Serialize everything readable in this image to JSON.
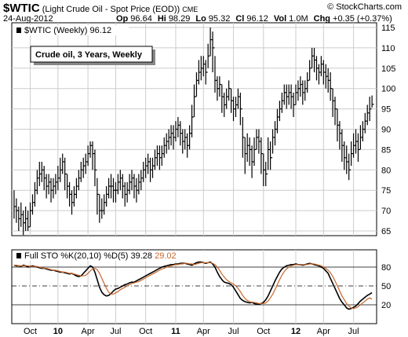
{
  "header": {
    "symbol": "$WTIC",
    "description": "(Light Crude Oil - Spot Price (EOD))",
    "exchange": "CME",
    "date": "24-Aug-2012",
    "stats": [
      [
        "Op",
        "96.64"
      ],
      [
        "Hi",
        "98.29"
      ],
      [
        "Lo",
        "95.32"
      ],
      [
        "Cl",
        "96.12"
      ],
      [
        "Vol",
        "1.0M"
      ],
      [
        "Chg",
        "+0.35 (+0.37%)"
      ]
    ],
    "source": "© StockCharts.com"
  },
  "chart_data": [
    {
      "type": "ohlc",
      "title": "Crude oil, 3 Years, Weekly",
      "legend": "$WTIC (Weekly)",
      "color": "#000000",
      "grid": true,
      "xlim": [
        -1,
        157
      ],
      "ylim": [
        63.84,
        116.16
      ],
      "yticks": [
        65,
        70,
        75,
        80,
        85,
        90,
        95,
        100,
        105,
        110,
        115
      ],
      "xticks": [
        {
          "value": 7,
          "label": "Oct"
        },
        {
          "value": 19,
          "label": "10"
        },
        {
          "value": 32,
          "label": "Apr"
        },
        {
          "value": 44,
          "label": "Jul"
        },
        {
          "value": 57,
          "label": "Oct"
        },
        {
          "value": 70,
          "label": "11"
        },
        {
          "value": 82,
          "label": "Apr"
        },
        {
          "value": 95,
          "label": "Jul"
        },
        {
          "value": 108,
          "label": "Oct"
        },
        {
          "value": 122,
          "label": "12"
        },
        {
          "value": 134,
          "label": "Apr"
        },
        {
          "value": 147,
          "label": "Jul"
        }
      ],
      "high": [
        75,
        73,
        71,
        72,
        70,
        71,
        70,
        72,
        74,
        77,
        80,
        82,
        82,
        81,
        79,
        79,
        78,
        78,
        79,
        81,
        83,
        84,
        83,
        79,
        77,
        75,
        76,
        78,
        80,
        82,
        83,
        84,
        86,
        87,
        87,
        85,
        78,
        74,
        73,
        74,
        76,
        78,
        79,
        78,
        77,
        79,
        80,
        79,
        77,
        77,
        79,
        80,
        79,
        78,
        79,
        80,
        82,
        83,
        84,
        83,
        83,
        85,
        86,
        86,
        86,
        88,
        89,
        90,
        91,
        91,
        92,
        93,
        92,
        90,
        90,
        89,
        91,
        96,
        101,
        104,
        107,
        108,
        108,
        107,
        111,
        115,
        114,
        108,
        103,
        103,
        101,
        99,
        100,
        102,
        100,
        98,
        98,
        100,
        99,
        93,
        88,
        89,
        88,
        86,
        88,
        90,
        90,
        88,
        84,
        82,
        88,
        87,
        90,
        92,
        95,
        97,
        99,
        101,
        101,
        101,
        101,
        99,
        101,
        102,
        103,
        102,
        102,
        104,
        107,
        110,
        110,
        108,
        106,
        108,
        107,
        106,
        105,
        104,
        100,
        98,
        95,
        92,
        90,
        87,
        86,
        84,
        87,
        89,
        90,
        89,
        91,
        92,
        94,
        96,
        98,
        98.29
      ],
      "low": [
        68,
        67,
        65,
        66,
        64,
        65,
        65,
        66,
        69,
        71,
        74,
        76,
        77,
        75,
        73,
        74,
        72,
        73,
        74,
        75,
        77,
        79,
        75,
        73,
        71,
        69,
        71,
        73,
        75,
        77,
        78,
        79,
        81,
        83,
        80,
        76,
        69,
        67,
        68,
        69,
        71,
        73,
        73,
        72,
        72,
        74,
        75,
        73,
        71,
        72,
        74,
        75,
        73,
        72,
        74,
        75,
        77,
        78,
        79,
        77,
        78,
        80,
        81,
        80,
        81,
        83,
        84,
        85,
        86,
        85,
        87,
        88,
        86,
        84,
        85,
        83,
        85,
        88,
        93,
        98,
        101,
        102,
        103,
        101,
        105,
        108,
        104,
        99,
        97,
        98,
        94,
        93,
        95,
        97,
        94,
        92,
        93,
        95,
        91,
        83,
        79,
        82,
        81,
        78,
        81,
        85,
        84,
        79,
        76,
        76,
        80,
        80,
        84,
        86,
        89,
        92,
        94,
        96,
        95,
        96,
        95,
        93,
        96,
        97,
        98,
        96,
        97,
        99,
        102,
        105,
        104,
        102,
        101,
        103,
        101,
        100,
        99,
        97,
        93,
        91,
        87,
        85,
        82,
        80,
        79,
        77.5,
        81,
        83,
        84,
        82,
        85,
        87,
        89,
        91,
        92,
        95.32
      ],
      "close": [
        71,
        70,
        68,
        69,
        67,
        68,
        66,
        70,
        72,
        75,
        78,
        79,
        80,
        78,
        76,
        77,
        75,
        76,
        77,
        78,
        80,
        82,
        79,
        76,
        74,
        72,
        74,
        76,
        78,
        80,
        81,
        82,
        84,
        86,
        84,
        80,
        74,
        70,
        70,
        72,
        74,
        76,
        76,
        75,
        75,
        77,
        78,
        76,
        74,
        75,
        77,
        78,
        76,
        75,
        77,
        78,
        80,
        81,
        82,
        80,
        81,
        83,
        84,
        83,
        84,
        86,
        87,
        88,
        89,
        88,
        90,
        91,
        89,
        87,
        88,
        86,
        89,
        93,
        98,
        102,
        104,
        105,
        106,
        104,
        108,
        112,
        110,
        102,
        100,
        101,
        98,
        96,
        98,
        100,
        97,
        95,
        96,
        98,
        95,
        88,
        84,
        86,
        85,
        82,
        85,
        88,
        87,
        84,
        80,
        79,
        85,
        83,
        88,
        90,
        93,
        95,
        97,
        99,
        98,
        99,
        98,
        96,
        99,
        100,
        101,
        99,
        100,
        102,
        105,
        108,
        107,
        105,
        104,
        106,
        104,
        103,
        102,
        100,
        97,
        95,
        91,
        89,
        86,
        83,
        82,
        80,
        84,
        86,
        87,
        85,
        88,
        90,
        92,
        94,
        95,
        96.12
      ]
    },
    {
      "type": "line",
      "title": "Full STO %K(20,10) %D(5)",
      "ylim": [
        -10,
        107.5
      ],
      "yticks": [
        20,
        50,
        80
      ],
      "series": [
        {
          "color": "#000000",
          "values": [
            83,
            82,
            82,
            81,
            83,
            82,
            80,
            81,
            82,
            81,
            80,
            79,
            78,
            78,
            77,
            76,
            75,
            75,
            74,
            73,
            72,
            72,
            71,
            70,
            69,
            70,
            68,
            66,
            65,
            66,
            70,
            74,
            78,
            82,
            80,
            72,
            60,
            48,
            40,
            36,
            34,
            35,
            38,
            42,
            45,
            46,
            48,
            50,
            52,
            53,
            55,
            56,
            56,
            58,
            60,
            62,
            64,
            66,
            68,
            70,
            72,
            74,
            76,
            78,
            80,
            81,
            82,
            83,
            84,
            84,
            85,
            85,
            86,
            86,
            86,
            85,
            84,
            83,
            85,
            87,
            88,
            88,
            87,
            86,
            87,
            88,
            85,
            80,
            72,
            65,
            60,
            56,
            55,
            54,
            52,
            48,
            42,
            36,
            30,
            27,
            25,
            24,
            23,
            24,
            22,
            21,
            21,
            22,
            24,
            28,
            34,
            42,
            50,
            58,
            65,
            72,
            77,
            80,
            82,
            83,
            84,
            84,
            85,
            84,
            84,
            83,
            84,
            85,
            86,
            85,
            84,
            83,
            82,
            80,
            78,
            74,
            70,
            62,
            54,
            46,
            38,
            30,
            24,
            20,
            15,
            13,
            14,
            16,
            18,
            22,
            26,
            29,
            32,
            35,
            37,
            39.28
          ]
        },
        {
          "color": "#c8662a",
          "values": [
            83,
            83,
            82,
            82,
            82,
            82,
            82,
            81,
            81,
            81,
            81,
            80,
            79,
            78,
            78,
            77,
            76,
            75,
            75,
            74,
            73,
            72,
            72,
            71,
            70,
            70,
            69,
            68,
            67,
            66,
            66,
            67,
            70,
            74,
            77,
            78,
            76,
            70,
            62,
            54,
            46,
            40,
            37,
            37,
            39,
            41,
            44,
            46,
            48,
            50,
            52,
            54,
            55,
            56,
            57,
            59,
            61,
            63,
            65,
            67,
            69,
            71,
            73,
            75,
            77,
            78,
            80,
            81,
            82,
            83,
            84,
            84,
            85,
            85,
            86,
            86,
            85,
            85,
            84,
            85,
            86,
            87,
            87,
            87,
            87,
            87,
            86,
            84,
            80,
            75,
            69,
            64,
            60,
            57,
            55,
            53,
            50,
            46,
            41,
            35,
            30,
            27,
            25,
            24,
            24,
            23,
            22,
            22,
            22,
            23,
            26,
            31,
            37,
            44,
            52,
            60,
            67,
            73,
            77,
            80,
            82,
            83,
            84,
            84,
            84,
            84,
            84,
            84,
            85,
            85,
            85,
            84,
            83,
            82,
            80,
            78,
            75,
            71,
            65,
            58,
            50,
            42,
            34,
            28,
            22,
            18,
            15,
            14,
            15,
            17,
            20,
            23,
            26,
            29,
            31,
            29.02
          ]
        }
      ]
    }
  ]
}
